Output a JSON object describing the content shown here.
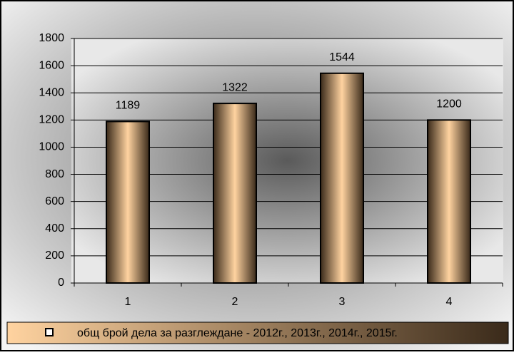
{
  "chart_data": {
    "type": "bar",
    "categories": [
      "1",
      "2",
      "3",
      "4"
    ],
    "series": [
      {
        "name": "общ брой дела за разглеждане  -  2012г., 2013г., 2014г., 2015г.",
        "color": "#7a5a3a",
        "values": [
          1189,
          1322,
          1544,
          1200
        ]
      }
    ],
    "ylim": [
      0,
      1800
    ],
    "yticks": [
      0,
      200,
      400,
      600,
      800,
      1000,
      1200,
      1400,
      1600,
      1800
    ],
    "grid": true,
    "legend": "bottom"
  }
}
